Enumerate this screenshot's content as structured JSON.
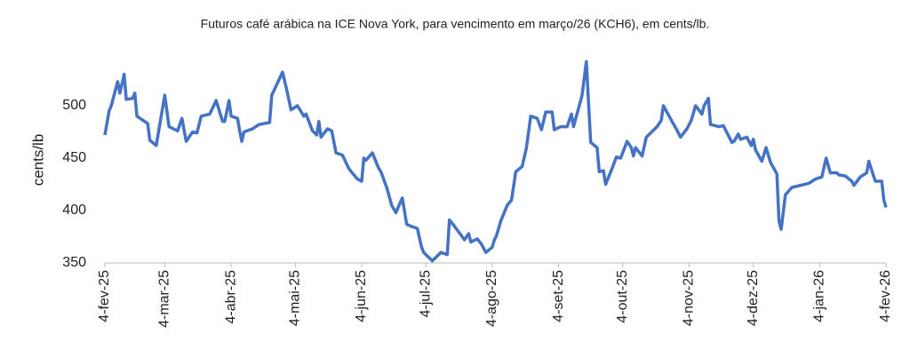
{
  "chart_data": {
    "type": "line",
    "title": "Futuros café arábica na ICE Nova York, para vencimento em março/26 (KCH6), em cents/lb.",
    "y_label": "cents/lb",
    "x": [
      "2025-02-04",
      "2025-02-06",
      "2025-02-07",
      "2025-02-10",
      "2025-02-11",
      "2025-02-13",
      "2025-02-14",
      "2025-02-17",
      "2025-02-18",
      "2025-02-19",
      "2025-02-24",
      "2025-02-25",
      "2025-02-28",
      "2025-03-04",
      "2025-03-06",
      "2025-03-10",
      "2025-03-12",
      "2025-03-14",
      "2025-03-17",
      "2025-03-19",
      "2025-03-21",
      "2025-03-25",
      "2025-03-28",
      "2025-03-31",
      "2025-04-01",
      "2025-04-03",
      "2025-04-04",
      "2025-04-07",
      "2025-04-08",
      "2025-04-09",
      "2025-04-10",
      "2025-04-14",
      "2025-04-17",
      "2025-04-22",
      "2025-04-23",
      "2025-04-28",
      "2025-04-30",
      "2025-05-02",
      "2025-05-05",
      "2025-05-08",
      "2025-05-09",
      "2025-05-12",
      "2025-05-14",
      "2025-05-15",
      "2025-05-16",
      "2025-05-19",
      "2025-05-21",
      "2025-05-23",
      "2025-05-26",
      "2025-05-29",
      "2025-06-02",
      "2025-06-04",
      "2025-06-05",
      "2025-06-06",
      "2025-06-09",
      "2025-06-12",
      "2025-06-13",
      "2025-06-16",
      "2025-06-18",
      "2025-06-20",
      "2025-06-23",
      "2025-06-25",
      "2025-06-27",
      "2025-06-30",
      "2025-07-02",
      "2025-07-03",
      "2025-07-07",
      "2025-07-09",
      "2025-07-11",
      "2025-07-14",
      "2025-07-15",
      "2025-07-17",
      "2025-07-21",
      "2025-07-22",
      "2025-07-24",
      "2025-07-25",
      "2025-07-28",
      "2025-07-30",
      "2025-08-01",
      "2025-08-04",
      "2025-08-05",
      "2025-08-06",
      "2025-08-08",
      "2025-08-11",
      "2025-08-13",
      "2025-08-15",
      "2025-08-18",
      "2025-08-20",
      "2025-08-22",
      "2025-08-25",
      "2025-08-27",
      "2025-08-29",
      "2025-09-01",
      "2025-09-02",
      "2025-09-05",
      "2025-09-08",
      "2025-09-10",
      "2025-09-11",
      "2025-09-15",
      "2025-09-17",
      "2025-09-19",
      "2025-09-22",
      "2025-09-23",
      "2025-09-25",
      "2025-09-26",
      "2025-09-29",
      "2025-10-01",
      "2025-10-03",
      "2025-10-06",
      "2025-10-08",
      "2025-10-09",
      "2025-10-10",
      "2025-10-13",
      "2025-10-15",
      "2025-10-17",
      "2025-10-20",
      "2025-10-22",
      "2025-10-23",
      "2025-10-27",
      "2025-10-29",
      "2025-10-31",
      "2025-11-03",
      "2025-11-05",
      "2025-11-07",
      "2025-11-10",
      "2025-11-11",
      "2025-11-13",
      "2025-11-14",
      "2025-11-18",
      "2025-11-20",
      "2025-11-24",
      "2025-11-25",
      "2025-11-27",
      "2025-11-28",
      "2025-12-01",
      "2025-12-03",
      "2025-12-04",
      "2025-12-05",
      "2025-12-08",
      "2025-12-10",
      "2025-12-12",
      "2025-12-15",
      "2025-12-16",
      "2025-12-17",
      "2025-12-19",
      "2025-12-22",
      "2025-12-26",
      "2025-12-30",
      "2026-01-02",
      "2026-01-05",
      "2026-01-07",
      "2026-01-09",
      "2026-01-12",
      "2026-01-13",
      "2026-01-16",
      "2026-01-19",
      "2026-01-20",
      "2026-01-23",
      "2026-01-26",
      "2026-01-27",
      "2026-01-29",
      "2026-01-30",
      "2026-02-02",
      "2026-02-03",
      "2026-02-04"
    ],
    "series": [
      {
        "color": "#4472c4",
        "values": [
          472,
          495,
          500,
          523,
          512,
          530,
          506,
          507,
          512,
          490,
          483,
          467,
          462,
          510,
          480,
          476,
          488,
          466,
          475,
          474,
          490,
          492,
          505,
          485,
          485,
          505,
          490,
          488,
          476,
          466,
          475,
          478,
          482,
          484,
          510,
          532,
          515,
          496,
          500,
          490,
          492,
          476,
          472,
          485,
          470,
          478,
          476,
          455,
          453,
          440,
          430,
          428,
          450,
          448,
          455,
          440,
          437,
          420,
          405,
          398,
          412,
          387,
          385,
          383,
          365,
          360,
          352,
          356,
          360,
          358,
          391,
          386,
          375,
          372,
          378,
          370,
          373,
          368,
          360,
          365,
          372,
          376,
          390,
          405,
          410,
          437,
          442,
          460,
          490,
          488,
          477,
          494,
          494,
          477,
          480,
          480,
          492,
          480,
          510,
          542,
          465,
          460,
          437,
          438,
          425,
          440,
          451,
          450,
          466,
          460,
          452,
          460,
          452,
          470,
          474,
          480,
          486,
          500,
          485,
          478,
          470,
          478,
          486,
          500,
          492,
          500,
          507,
          482,
          480,
          481,
          465,
          466,
          473,
          468,
          470,
          462,
          468,
          458,
          447,
          460,
          446,
          435,
          390,
          382,
          415,
          422,
          424,
          426,
          430,
          432,
          450,
          436,
          436,
          434,
          433,
          428,
          424,
          432,
          436,
          447,
          434,
          428,
          428,
          410,
          403
        ]
      }
    ],
    "xlim": [
      "2025-02-04",
      "2026-02-04"
    ],
    "xticks": [
      {
        "value": "2025-02-04",
        "label": "4-fev-25"
      },
      {
        "value": "2025-03-04",
        "label": "4-mar-25"
      },
      {
        "value": "2025-04-04",
        "label": "4-abr-25"
      },
      {
        "value": "2025-05-04",
        "label": "4-mai-25"
      },
      {
        "value": "2025-06-04",
        "label": "4-jun-25"
      },
      {
        "value": "2025-07-04",
        "label": "4-jul-25"
      },
      {
        "value": "2025-08-04",
        "label": "4-ago-25"
      },
      {
        "value": "2025-09-04",
        "label": "4-set-25"
      },
      {
        "value": "2025-10-04",
        "label": "4-out-25"
      },
      {
        "value": "2025-11-04",
        "label": "4-nov-25"
      },
      {
        "value": "2025-12-04",
        "label": "4-dez-25"
      },
      {
        "value": "2026-01-04",
        "label": "4-jan-26"
      },
      {
        "value": "2026-02-04",
        "label": "4-fev-26"
      }
    ],
    "ylim": [
      350,
      550
    ],
    "yticks": [
      350,
      400,
      450,
      500
    ],
    "grid": false
  }
}
